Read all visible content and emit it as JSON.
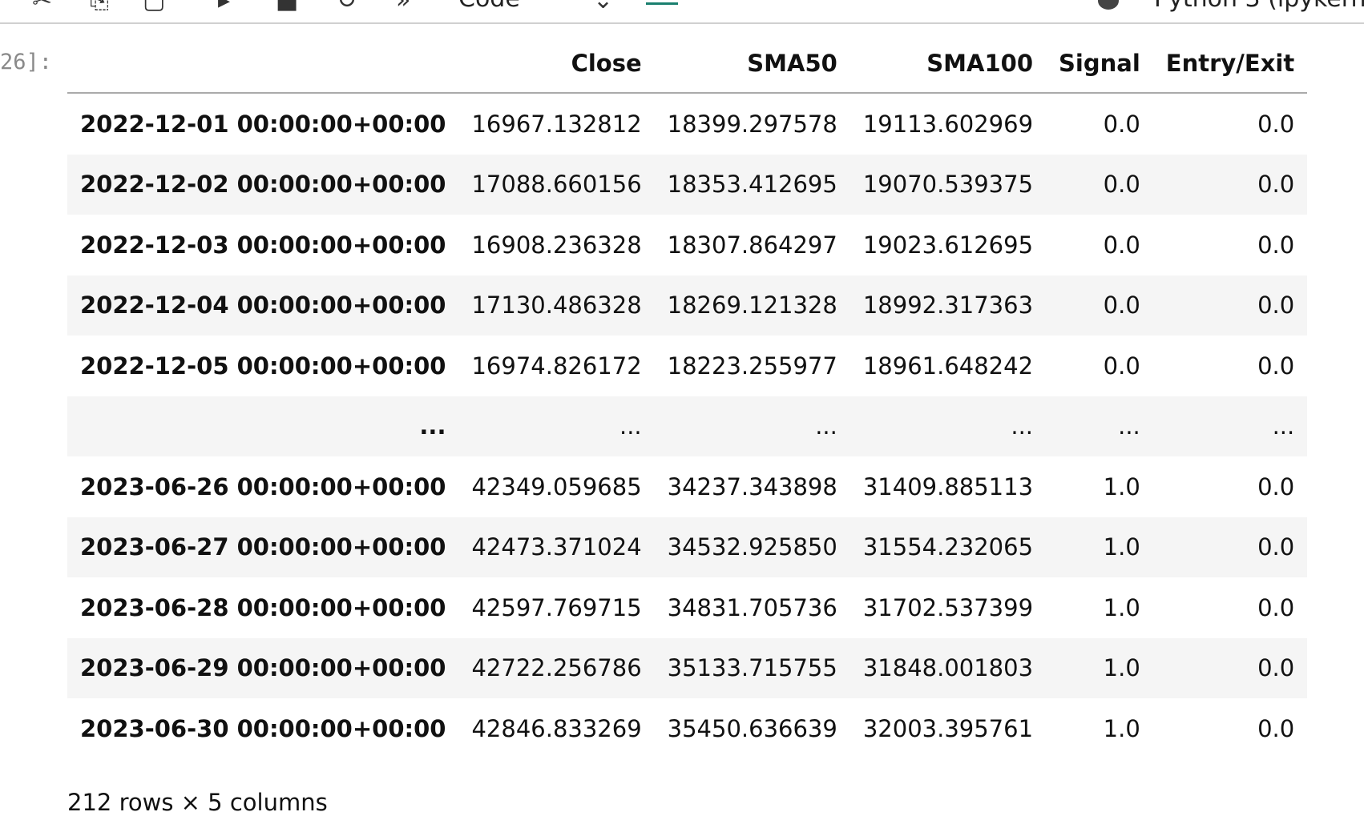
{
  "toolbar": {
    "icons": [
      "cut-icon",
      "copy-icon",
      "paste-icon",
      "run-icon",
      "stop-icon",
      "restart-icon",
      "fast-forward-icon"
    ],
    "cell_type": "Code",
    "kernel": "Python 3 (ipykern"
  },
  "cell": {
    "prompt": "26]:"
  },
  "table": {
    "columns": [
      "",
      "Close",
      "SMA50",
      "SMA100",
      "Signal",
      "Entry/Exit"
    ],
    "rows": [
      [
        "2022-12-01 00:00:00+00:00",
        "16967.132812",
        "18399.297578",
        "19113.602969",
        "0.0",
        "0.0"
      ],
      [
        "2022-12-02 00:00:00+00:00",
        "17088.660156",
        "18353.412695",
        "19070.539375",
        "0.0",
        "0.0"
      ],
      [
        "2022-12-03 00:00:00+00:00",
        "16908.236328",
        "18307.864297",
        "19023.612695",
        "0.0",
        "0.0"
      ],
      [
        "2022-12-04 00:00:00+00:00",
        "17130.486328",
        "18269.121328",
        "18992.317363",
        "0.0",
        "0.0"
      ],
      [
        "2022-12-05 00:00:00+00:00",
        "16974.826172",
        "18223.255977",
        "18961.648242",
        "0.0",
        "0.0"
      ],
      [
        "...",
        "...",
        "...",
        "...",
        "...",
        "..."
      ],
      [
        "2023-06-26 00:00:00+00:00",
        "42349.059685",
        "34237.343898",
        "31409.885113",
        "1.0",
        "0.0"
      ],
      [
        "2023-06-27 00:00:00+00:00",
        "42473.371024",
        "34532.925850",
        "31554.232065",
        "1.0",
        "0.0"
      ],
      [
        "2023-06-28 00:00:00+00:00",
        "42597.769715",
        "34831.705736",
        "31702.537399",
        "1.0",
        "0.0"
      ],
      [
        "2023-06-29 00:00:00+00:00",
        "42722.256786",
        "35133.715755",
        "31848.001803",
        "1.0",
        "0.0"
      ],
      [
        "2023-06-30 00:00:00+00:00",
        "42846.833269",
        "35450.636639",
        "32003.395761",
        "1.0",
        "0.0"
      ]
    ]
  },
  "footer": {
    "shape": "212 rows × 5 columns"
  }
}
